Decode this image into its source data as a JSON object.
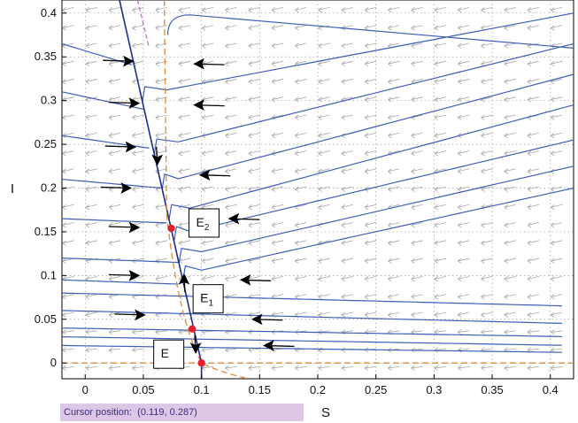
{
  "chart_data": {
    "type": "phase-portrait",
    "xlabel": "S",
    "ylabel": "I",
    "xlim": [
      -0.02,
      0.42
    ],
    "ylim": [
      -0.018,
      0.415
    ],
    "x_ticks": [
      "0",
      "0.05",
      "0.1",
      "0.15",
      "0.2",
      "0.25",
      "0.3",
      "0.35",
      "0.4"
    ],
    "y_ticks": [
      "0",
      "0.05",
      "0.1",
      "0.15",
      "0.2",
      "0.25",
      "0.3",
      "0.35",
      "0.4"
    ],
    "grid": true,
    "colors": {
      "trajectory": "#3d5db8",
      "separatrix": "#1f2a8c",
      "nullcline": "#e08a3c",
      "magenta_line": "#cc66cc",
      "equilibrium": "#e0202a",
      "field_arrow": "#a8a8a8",
      "arrow": "#000000"
    },
    "equilibria": [
      {
        "name": "E",
        "subscript": "",
        "s": 0.1,
        "i": 0.0
      },
      {
        "name": "E",
        "subscript": "1",
        "s": 0.092,
        "i": 0.039
      },
      {
        "name": "E",
        "subscript": "2",
        "s": 0.074,
        "i": 0.154
      }
    ],
    "trajectories": [
      {
        "from": "right",
        "i_start": 0.4,
        "i_end": 0.31
      },
      {
        "from": "right",
        "i_start": 0.365,
        "i_end": 0.25
      },
      {
        "from": "right",
        "i_start": 0.33,
        "i_end": 0.21
      },
      {
        "from": "right",
        "i_start": 0.295,
        "i_end": 0.175
      },
      {
        "from": "right",
        "i_start": 0.255,
        "i_end": 0.15
      },
      {
        "from": "right",
        "i_start": 0.225,
        "i_end": 0.125
      },
      {
        "from": "right",
        "i_start": 0.2,
        "i_end": 0.105
      },
      {
        "from": "left",
        "i_start": 0.365,
        "i_end": 0.34
      },
      {
        "from": "left",
        "i_start": 0.31,
        "i_end": 0.29
      },
      {
        "from": "left",
        "i_start": 0.26,
        "i_end": 0.245
      },
      {
        "from": "left",
        "i_start": 0.21,
        "i_end": 0.2
      },
      {
        "from": "left",
        "i_start": 0.165,
        "i_end": 0.16
      },
      {
        "from": "left",
        "i_start": 0.12,
        "i_end": 0.115
      },
      {
        "from": "left",
        "i_start": 0.095,
        "i_end": 0.09
      },
      {
        "from": "full",
        "i_start": 0.08,
        "i_end": 0.065
      },
      {
        "from": "full",
        "i_start": 0.06,
        "i_end": 0.045
      },
      {
        "from": "full",
        "i_start": 0.04,
        "i_end": 0.03
      },
      {
        "from": "full",
        "i_start": 0.03,
        "i_end": 0.02
      },
      {
        "from": "full",
        "i_start": 0.02,
        "i_end": 0.012
      }
    ]
  },
  "status": {
    "cursor_label": "Cursor position:",
    "cursor_value": "(0.119, 0.287)"
  }
}
